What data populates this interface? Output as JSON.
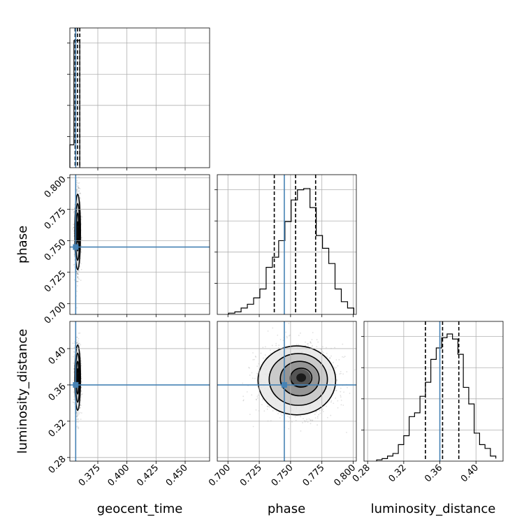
{
  "chart_data": {
    "type": "corner",
    "parameters": [
      {
        "name": "geocent_time",
        "label": "geocent_time",
        "range": [
          0.351,
          0.471
        ],
        "ticks": [
          "0.375",
          "0.400",
          "0.425",
          "0.450"
        ],
        "truth": 0.356,
        "quantiles": [
          0.3555,
          0.3575,
          0.3595
        ]
      },
      {
        "name": "phase",
        "label": "phase",
        "range": [
          0.6915,
          0.8025
        ],
        "ticks": [
          "0.700",
          "0.725",
          "0.750",
          "0.775",
          "0.800"
        ],
        "truth": 0.745,
        "quantiles": [
          0.737,
          0.754,
          0.77
        ]
      },
      {
        "name": "luminosity_distance",
        "label": "luminosity_distance",
        "range": [
          0.276,
          0.43
        ],
        "ticks": [
          "0.28",
          "0.32",
          "0.36",
          "0.40"
        ],
        "truth": 0.36,
        "quantiles": [
          0.344,
          0.363,
          0.381
        ]
      }
    ],
    "histograms": [
      {
        "param": "geocent_time",
        "edges": [
          0.351,
          0.3545,
          0.3595
        ],
        "heights": [
          0.18,
          1.0
        ]
      },
      {
        "param": "phase",
        "edges": [
          0.7005,
          0.7055,
          0.7105,
          0.7155,
          0.7205,
          0.7255,
          0.7305,
          0.7355,
          0.7405,
          0.7455,
          0.7505,
          0.7555,
          0.7605,
          0.7655,
          0.7705,
          0.7755,
          0.7805,
          0.7855,
          0.7905,
          0.7955,
          0.8005
        ],
        "heights": [
          0.01,
          0.02,
          0.05,
          0.08,
          0.13,
          0.2,
          0.37,
          0.45,
          0.58,
          0.73,
          0.9,
          0.98,
          0.99,
          0.84,
          0.62,
          0.52,
          0.4,
          0.2,
          0.1,
          0.05
        ]
      },
      {
        "param": "luminosity_distance",
        "edges": [
          0.29,
          0.296,
          0.302,
          0.308,
          0.314,
          0.32,
          0.326,
          0.332,
          0.338,
          0.344,
          0.35,
          0.356,
          0.362,
          0.368,
          0.374,
          0.38,
          0.386,
          0.392,
          0.398,
          0.404,
          0.41,
          0.416,
          0.422
        ],
        "heights": [
          0.01,
          0.02,
          0.04,
          0.06,
          0.13,
          0.2,
          0.35,
          0.38,
          0.51,
          0.62,
          0.8,
          0.89,
          0.97,
          1.0,
          0.96,
          0.84,
          0.58,
          0.45,
          0.22,
          0.13,
          0.1,
          0.04,
          0.02
        ]
      }
    ],
    "contours_2d": [
      {
        "x": "geocent_time",
        "y": "phase",
        "center": [
          0.3577,
          0.757
        ],
        "sigma": [
          0.0012,
          0.015
        ],
        "peak": [
          0.3577,
          0.757
        ]
      },
      {
        "x": "geocent_time",
        "y": "luminosity_distance",
        "center": [
          0.3577,
          0.368
        ],
        "sigma": [
          0.0012,
          0.018
        ],
        "peak": [
          0.3577,
          0.368
        ]
      },
      {
        "x": "phase",
        "y": "luminosity_distance",
        "center": [
          0.755,
          0.365
        ],
        "sigma": [
          0.0155,
          0.019
        ],
        "peak": [
          0.7585,
          0.368
        ]
      }
    ],
    "truth_color": "#4682b4",
    "contour_color": "#000000",
    "grid": true
  }
}
